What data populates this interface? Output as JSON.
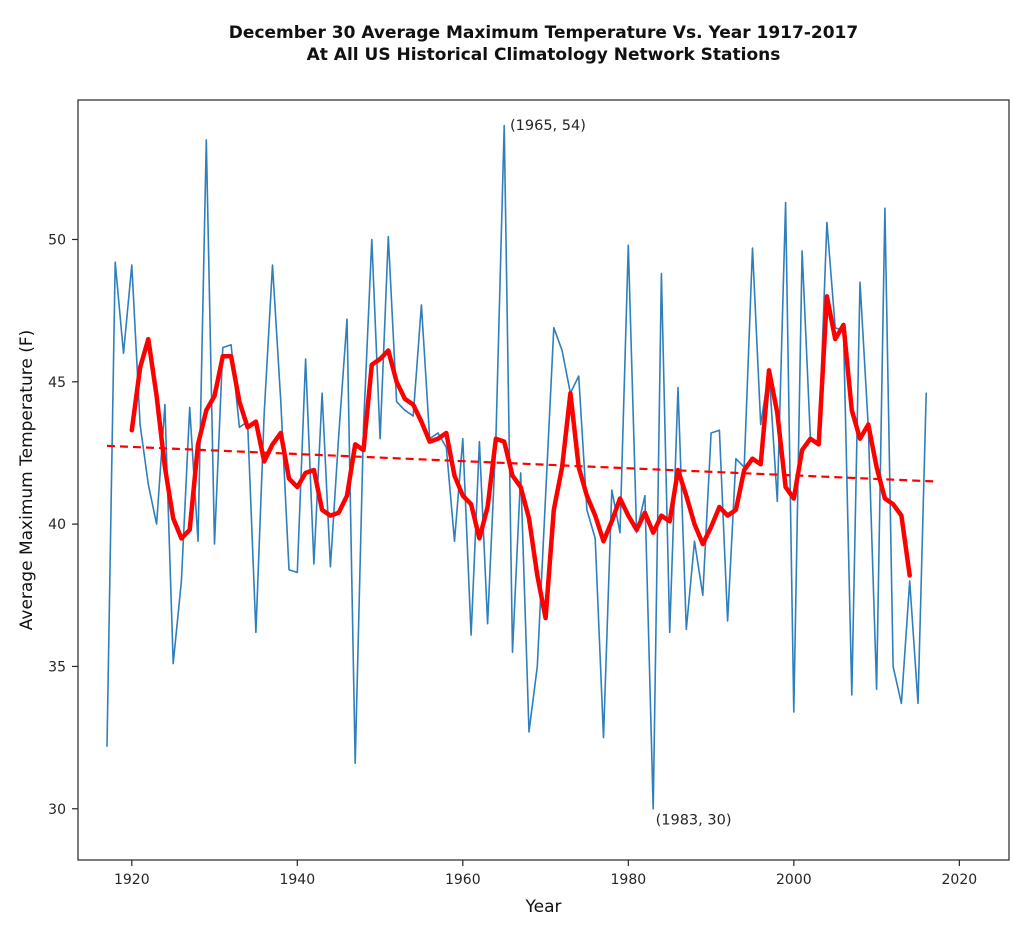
{
  "chart": {
    "title_line1": "December 30 Average Maximum Temperature Vs. Year 1917-2017",
    "title_line2": "At All US Historical Climatology Network Stations"
  },
  "chart_data": {
    "type": "line",
    "title": "December 30 Average Maximum Temperature Vs. Year 1917-2017 At All US Historical Climatology Network Stations",
    "xlabel": "Year",
    "ylabel": "Average Maximum Temperature (F)",
    "xlim": [
      1913.5,
      2026
    ],
    "ylim": [
      28.2,
      54.9
    ],
    "x_ticks": [
      1920,
      1940,
      1960,
      1980,
      2000,
      2020
    ],
    "y_ticks": [
      30,
      35,
      40,
      45,
      50
    ],
    "grid": false,
    "legend": "none",
    "colors": {
      "annual": "#2f7fbc",
      "smoothed": "#ff0000",
      "trend": "#ff0000",
      "axis": "#262626"
    },
    "annotations": [
      {
        "text": "(1965, 54)",
        "at_x": 1965.7,
        "at_y": 53.85
      },
      {
        "text": "(1983, 30)",
        "at_x": 1983.3,
        "at_y": 29.45
      }
    ],
    "series": [
      {
        "name": "annual",
        "x_start": 1917,
        "values": [
          32.2,
          49.2,
          46.0,
          49.1,
          43.5,
          41.4,
          40.0,
          44.2,
          35.1,
          38.0,
          44.1,
          39.4,
          53.5,
          39.3,
          46.2,
          46.3,
          43.4,
          43.6,
          36.2,
          43.9,
          49.1,
          44.3,
          38.4,
          38.3,
          45.8,
          38.6,
          44.6,
          38.5,
          43.1,
          47.2,
          31.6,
          43.4,
          50.0,
          43.0,
          50.1,
          44.3,
          44.0,
          43.8,
          47.7,
          43.0,
          43.2,
          42.7,
          39.4,
          43.0,
          36.1,
          42.9,
          36.5,
          43.0,
          54.0,
          35.5,
          41.8,
          32.7,
          35.0,
          41.0,
          46.9,
          46.1,
          44.6,
          45.2,
          40.5,
          39.5,
          32.5,
          41.2,
          39.7,
          49.8,
          39.7,
          41.0,
          30.0,
          48.8,
          36.2,
          44.8,
          36.3,
          39.4,
          37.5,
          43.2,
          43.3,
          36.6,
          42.3,
          42.0,
          49.7,
          43.5,
          45.4,
          40.8,
          51.3,
          33.4,
          49.6,
          43.0,
          42.8,
          50.6,
          46.9,
          46.8,
          34.0,
          48.5,
          43.4,
          34.2,
          51.1,
          35.0,
          33.7,
          38.0,
          33.7,
          44.6
        ]
      },
      {
        "name": "smoothed",
        "x_start": 1920,
        "values": [
          43.3,
          45.5,
          46.5,
          44.5,
          42.0,
          40.2,
          39.5,
          39.8,
          42.8,
          44.0,
          44.5,
          45.9,
          45.9,
          44.3,
          43.4,
          43.6,
          42.2,
          42.8,
          43.2,
          41.6,
          41.3,
          41.8,
          41.9,
          40.5,
          40.3,
          40.4,
          41.0,
          42.8,
          42.6,
          45.6,
          45.8,
          46.1,
          45.0,
          44.4,
          44.2,
          43.6,
          42.9,
          43.0,
          43.2,
          41.7,
          41.0,
          40.7,
          39.5,
          40.6,
          43.0,
          42.9,
          41.7,
          41.3,
          40.2,
          38.2,
          36.7,
          40.5,
          42.0,
          44.6,
          42.0,
          41.0,
          40.3,
          39.4,
          40.1,
          40.9,
          40.3,
          39.8,
          40.4,
          39.7,
          40.3,
          40.1,
          41.9,
          41.0,
          40.0,
          39.3,
          39.9,
          40.6,
          40.3,
          40.5,
          41.9,
          42.3,
          42.1,
          45.4,
          43.9,
          41.3,
          40.9,
          42.6,
          43.0,
          42.8,
          48.0,
          46.5,
          47.0,
          44.0,
          43.0,
          43.5,
          42.0,
          40.9,
          40.7,
          40.3,
          38.2
        ]
      }
    ],
    "trend": {
      "name": "trend",
      "x": [
        1917,
        2017
      ],
      "y": [
        42.75,
        41.5
      ]
    }
  }
}
